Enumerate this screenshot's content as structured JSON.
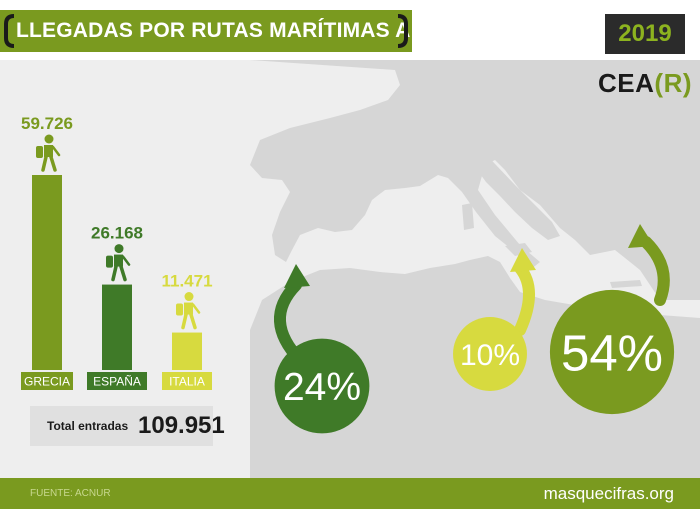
{
  "header": {
    "title": "LLEGADAS POR RUTAS MARÍTIMAS A LA UE",
    "year": "2019",
    "logo_main": "CEA",
    "logo_accent": "(R)"
  },
  "chart_data": {
    "type": "bar",
    "categories": [
      "GRECIA",
      "ESPAÑA",
      "ITALIA"
    ],
    "values": [
      59726,
      26168,
      11471
    ],
    "value_labels": [
      "59.726",
      "26.168",
      "11.471"
    ],
    "colors": [
      "#7a9a1f",
      "#3f7a28",
      "#d7da3f"
    ],
    "shares": [
      {
        "category": "ESPAÑA",
        "label": "24%",
        "value": 24,
        "color": "#3f7a28"
      },
      {
        "category": "ITALIA",
        "label": "10%",
        "value": 10,
        "color": "#d7da3f"
      },
      {
        "category": "GRECIA",
        "label": "54%",
        "value": 54,
        "color": "#7a9a1f"
      }
    ]
  },
  "total": {
    "label": "Total entradas",
    "value": "109.951"
  },
  "footer": {
    "source": "FUENTE: ACNUR",
    "site": "masquecifras.org"
  },
  "icons": [
    "bracket-left-icon",
    "bracket-right-icon",
    "hiker-icon",
    "curved-arrow-icon"
  ]
}
